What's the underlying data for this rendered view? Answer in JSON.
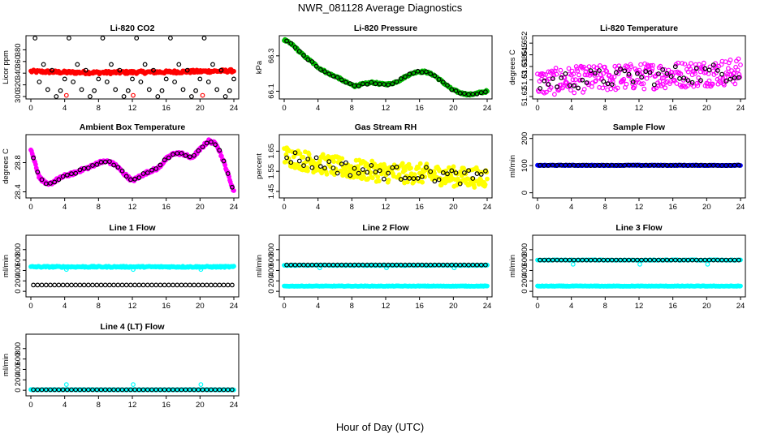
{
  "figure": {
    "title": "NWR_081128  Average Diagnostics",
    "xlabel": "Hour of Day (UTC)"
  },
  "chart_data": [
    {
      "type": "scatter",
      "title": "Li-820 CO2",
      "ylabel": "Licor ppm",
      "xlim": [
        0,
        24
      ],
      "ylim": [
        300,
        400
      ],
      "xticks": [
        0,
        4,
        8,
        12,
        16,
        20,
        24
      ],
      "yticks": [
        300,
        320,
        340,
        360,
        380
      ],
      "series": [
        {
          "color": "#ff0000",
          "marker": "filled",
          "style": "band",
          "x_range": [
            0,
            24
          ],
          "center": [
            343,
            341.5,
            341,
            341.5,
            342,
            343,
            344
          ],
          "spread": 2.5,
          "count": 220
        },
        {
          "color": "#000000",
          "marker": "open",
          "style": "cycle",
          "cycle": [
            400,
            325,
            355,
            312,
            345,
            300,
            310,
            330
          ],
          "step": 0.5,
          "x_start": 0.5
        },
        {
          "color": "#ff0000",
          "marker": "open",
          "style": "points",
          "x": [
            4.2,
            12.1,
            20.3
          ],
          "y": [
            302,
            302,
            302
          ]
        }
      ]
    },
    {
      "type": "scatter",
      "title": "Li-820 Pressure",
      "ylabel": "kPa",
      "xlim": [
        0,
        24
      ],
      "ylim": [
        66.07,
        66.4
      ],
      "xticks": [
        0,
        4,
        8,
        12,
        16,
        20,
        24
      ],
      "yticks": [
        66.1,
        66.3
      ],
      "series": [
        {
          "color": "#00bb00",
          "marker": "filled",
          "style": "band",
          "x_range": [
            0,
            24
          ],
          "center": [
            66.39,
            66.36,
            66.31,
            66.27,
            66.23,
            66.2,
            66.18,
            66.15,
            66.13,
            66.14,
            66.15,
            66.14,
            66.14,
            66.16,
            66.19,
            66.21,
            66.21,
            66.19,
            66.15,
            66.11,
            66.09,
            66.08,
            66.09,
            66.1
          ],
          "spread": 0.006,
          "count": 260
        },
        {
          "color": "#000000",
          "marker": "open",
          "style": "follow",
          "step": 0.5,
          "x_start": 0.3
        }
      ]
    },
    {
      "type": "scatter",
      "title": "Li-820 Temperature",
      "ylabel": "degrees C",
      "xlim": [
        0,
        24
      ],
      "ylim": [
        51.62,
        51.655
      ],
      "xticks": [
        0,
        4,
        8,
        12,
        16,
        20,
        24
      ],
      "yticks": [
        51.62,
        51.63,
        51.638,
        51.645,
        51.652
      ],
      "ytick_labels": [
        "51.62",
        "51.63",
        "51.638",
        "51.645",
        "51.652"
      ],
      "series": [
        {
          "color": "#ff00ff",
          "marker": "open",
          "style": "band",
          "x_range": [
            0,
            24
          ],
          "center": [
            51.628,
            51.63,
            51.631,
            51.632,
            51.633,
            51.634,
            51.635
          ],
          "spread": 0.008,
          "count": 300
        },
        {
          "color": "#000000",
          "marker": "open",
          "style": "follow",
          "step": 0.5,
          "x_start": 0.3
        }
      ]
    },
    {
      "type": "scatter",
      "title": "Ambient Box Temperature",
      "ylabel": "degrees C",
      "xlim": [
        0,
        24
      ],
      "ylim": [
        28.35,
        29.15
      ],
      "xticks": [
        0,
        4,
        8,
        12,
        16,
        20,
        24
      ],
      "yticks": [
        28.4,
        28.8
      ],
      "series": [
        {
          "color": "#ff00ff",
          "marker": "filled",
          "style": "band",
          "x_range": [
            0,
            24
          ],
          "center": [
            28.99,
            28.6,
            28.49,
            28.56,
            28.62,
            28.65,
            28.7,
            28.74,
            28.8,
            28.82,
            28.77,
            28.65,
            28.55,
            28.62,
            28.68,
            28.72,
            28.85,
            28.93,
            28.92,
            28.86,
            28.98,
            29.1,
            29.05,
            28.75,
            28.4
          ],
          "spread": 0.02,
          "count": 300
        },
        {
          "color": "#000000",
          "marker": "open",
          "style": "follow",
          "step": 0.5,
          "x_start": 0.3
        }
      ]
    },
    {
      "type": "scatter",
      "title": "Gas Stream RH",
      "ylabel": "percent",
      "xlim": [
        0,
        24
      ],
      "ylim": [
        1.43,
        1.72
      ],
      "xticks": [
        0,
        4,
        8,
        12,
        16,
        20,
        24
      ],
      "yticks": [
        1.45,
        1.55,
        1.65
      ],
      "series": [
        {
          "color": "#ffff00",
          "marker": "filled",
          "style": "band",
          "x_range": [
            0,
            24
          ],
          "center": [
            1.63,
            1.6,
            1.58,
            1.56,
            1.55,
            1.54,
            1.54,
            1.53,
            1.52,
            1.52
          ],
          "spread": 0.05,
          "count": 320
        },
        {
          "color": "#000000",
          "marker": "open",
          "style": "follow",
          "step": 0.5,
          "x_start": 0.3
        }
      ]
    },
    {
      "type": "scatter",
      "title": "Sample Flow",
      "ylabel": "ml/min",
      "xlim": [
        0,
        24
      ],
      "ylim": [
        -10,
        205
      ],
      "xticks": [
        0,
        4,
        8,
        12,
        16,
        20,
        24
      ],
      "yticks": [
        0,
        100,
        200
      ],
      "series": [
        {
          "color": "#0000ff",
          "marker": "filled",
          "style": "band",
          "x_range": [
            0,
            24
          ],
          "center": [
            101
          ],
          "spread": 1,
          "count": 200
        },
        {
          "color": "#000000",
          "marker": "open",
          "style": "follow",
          "step": 0.5,
          "x_start": 0.3
        }
      ]
    },
    {
      "type": "scatter",
      "title": "Line 1 Flow",
      "ylabel": "ml/min",
      "xlim": [
        0,
        24
      ],
      "ylim": [
        -60,
        1030
      ],
      "xticks": [
        0,
        4,
        8,
        12,
        16,
        20,
        24
      ],
      "yticks": [
        0,
        200,
        400,
        600,
        800
      ],
      "series": [
        {
          "color": "#00ffff",
          "marker": "filled",
          "style": "band",
          "x_range": [
            0,
            24
          ],
          "center": [
            470
          ],
          "spread": 12,
          "count": 220
        },
        {
          "color": "#00ffff",
          "marker": "open",
          "style": "points",
          "x": [
            4.2,
            12.1,
            20.1
          ],
          "y": [
            420,
            420,
            420
          ]
        },
        {
          "color": "#000000",
          "marker": "open",
          "style": "flat",
          "y": 120,
          "step": 0.5,
          "x_start": 0.3
        }
      ]
    },
    {
      "type": "scatter",
      "title": "Line 2 Flow",
      "ylabel": "ml/min",
      "xlim": [
        0,
        24
      ],
      "ylim": [
        -60,
        1030
      ],
      "xticks": [
        0,
        4,
        8,
        12,
        16,
        20,
        24
      ],
      "yticks": [
        0,
        200,
        400,
        600,
        800
      ],
      "series": [
        {
          "color": "#00ffff",
          "marker": "filled",
          "style": "band",
          "x_range": [
            0,
            24
          ],
          "center": [
            100
          ],
          "spread": 5,
          "count": 220
        },
        {
          "color": "#00ffff",
          "marker": "filled",
          "style": "band",
          "x_range": [
            0,
            24
          ],
          "center": [
            500
          ],
          "spread": 5,
          "count": 120
        },
        {
          "color": "#00ffff",
          "marker": "open",
          "style": "points",
          "x": [
            4.2,
            12.1,
            20.1
          ],
          "y": [
            450,
            450,
            450
          ]
        },
        {
          "color": "#000000",
          "marker": "open",
          "style": "flat",
          "y": 505,
          "step": 0.5,
          "x_start": 0.3
        }
      ]
    },
    {
      "type": "scatter",
      "title": "Line 3 Flow",
      "ylabel": "ml/min",
      "xlim": [
        0,
        24
      ],
      "ylim": [
        -60,
        1030
      ],
      "xticks": [
        0,
        4,
        8,
        12,
        16,
        20,
        24
      ],
      "yticks": [
        0,
        200,
        400,
        600,
        800
      ],
      "series": [
        {
          "color": "#00ffff",
          "marker": "filled",
          "style": "band",
          "x_range": [
            0,
            24
          ],
          "center": [
            100
          ],
          "spread": 5,
          "count": 220
        },
        {
          "color": "#00ffff",
          "marker": "filled",
          "style": "band",
          "x_range": [
            0,
            24
          ],
          "center": [
            600
          ],
          "spread": 5,
          "count": 120
        },
        {
          "color": "#00ffff",
          "marker": "open",
          "style": "points",
          "x": [
            4.2,
            12.1,
            20.1
          ],
          "y": [
            520,
            520,
            520
          ]
        },
        {
          "color": "#000000",
          "marker": "open",
          "style": "flat",
          "y": 600,
          "step": 0.5,
          "x_start": 0.3
        }
      ]
    },
    {
      "type": "scatter",
      "title": "Line 4 (LT) Flow",
      "ylabel": "ml/min",
      "xlim": [
        0,
        24
      ],
      "ylim": [
        -60,
        1030
      ],
      "xticks": [
        0,
        4,
        8,
        12,
        16,
        20,
        24
      ],
      "yticks": [
        0,
        200,
        400,
        600,
        800
      ],
      "series": [
        {
          "color": "#00ffff",
          "marker": "filled",
          "style": "band",
          "x_range": [
            0,
            24
          ],
          "center": [
            10
          ],
          "spread": 3,
          "count": 200
        },
        {
          "color": "#00ffff",
          "marker": "open",
          "style": "points",
          "x": [
            4.2,
            12.1,
            20.1
          ],
          "y": [
            110,
            110,
            110
          ]
        },
        {
          "color": "#000000",
          "marker": "open",
          "style": "flat",
          "y": 10,
          "step": 0.5,
          "x_start": 0.3
        }
      ]
    }
  ]
}
